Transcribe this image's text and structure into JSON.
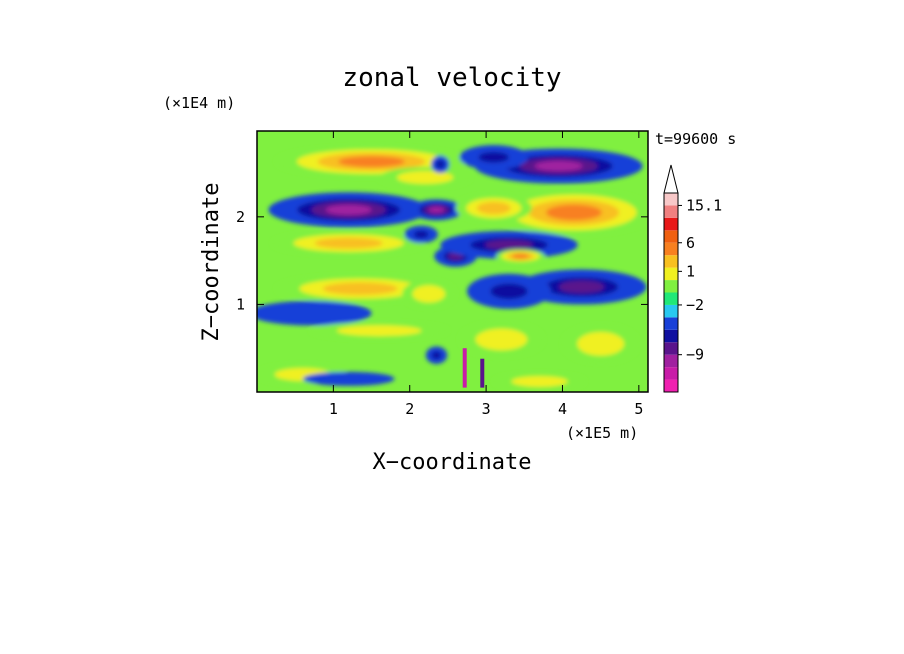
{
  "chart_data": {
    "type": "heatmap",
    "title": "zonal velocity",
    "xlabel": "X−coordinate",
    "ylabel": "Z−coordinate",
    "x_unit": "(×1E5 m)",
    "y_unit": "(×1E4 m)",
    "time_label": "t=99600 s",
    "xlim": [
      0,
      5.12
    ],
    "ylim": [
      0,
      2.98
    ],
    "x_ticks": [
      1,
      2,
      3,
      4,
      5
    ],
    "y_ticks": [
      1,
      2
    ],
    "colorbar": {
      "levels": [
        "#f020b0",
        "#c81ca8",
        "#a020a0",
        "#5a148c",
        "#1010a0",
        "#1840d8",
        "#28c8f0",
        "#20e878",
        "#80f040",
        "#f0f020",
        "#f8c020",
        "#f88020",
        "#f06010",
        "#e81818",
        "#f08080",
        "#f8c8c8"
      ],
      "labels": [
        {
          "text": "15.1",
          "level": 15
        },
        {
          "text": "6",
          "level": 12
        },
        {
          "text": "1",
          "level": 9.7
        },
        {
          "text": "−2",
          "level": 7
        },
        {
          "text": "−9",
          "level": 3
        }
      ]
    },
    "features": [
      {
        "cx": 1.5,
        "cz": 2.63,
        "rx": 1.25,
        "rz": 0.18,
        "v": 5
      },
      {
        "cx": 2.2,
        "cz": 2.45,
        "rx": 0.6,
        "rz": 0.12,
        "v": 3
      },
      {
        "cx": 1.2,
        "cz": 2.08,
        "rx": 1.05,
        "rz": 0.2,
        "v": -11
      },
      {
        "cx": 2.35,
        "cz": 2.08,
        "rx": 0.35,
        "rz": 0.12,
        "v": -9
      },
      {
        "cx": 3.95,
        "cz": 2.58,
        "rx": 1.1,
        "rz": 0.2,
        "v": -10
      },
      {
        "cx": 3.1,
        "cz": 2.68,
        "rx": 0.45,
        "rz": 0.14,
        "v": -6
      },
      {
        "cx": 2.4,
        "cz": 2.6,
        "rx": 0.12,
        "rz": 0.1,
        "v": -5
      },
      {
        "cx": 4.15,
        "cz": 2.05,
        "rx": 1.05,
        "rz": 0.26,
        "v": 6
      },
      {
        "cx": 3.1,
        "cz": 2.1,
        "rx": 0.5,
        "rz": 0.16,
        "v": 4
      },
      {
        "cx": 1.2,
        "cz": 1.7,
        "rx": 1.0,
        "rz": 0.14,
        "v": 4
      },
      {
        "cx": 2.15,
        "cz": 1.8,
        "rx": 0.22,
        "rz": 0.1,
        "v": -4
      },
      {
        "cx": 2.6,
        "cz": 1.55,
        "rx": 0.28,
        "rz": 0.12,
        "v": -7
      },
      {
        "cx": 3.3,
        "cz": 1.68,
        "rx": 0.9,
        "rz": 0.16,
        "v": -7
      },
      {
        "cx": 3.45,
        "cz": 1.55,
        "rx": 0.32,
        "rz": 0.08,
        "v": 5
      },
      {
        "cx": 4.25,
        "cz": 1.2,
        "rx": 0.85,
        "rz": 0.2,
        "v": -8
      },
      {
        "cx": 3.3,
        "cz": 1.15,
        "rx": 0.55,
        "rz": 0.2,
        "v": -5
      },
      {
        "cx": 1.35,
        "cz": 1.18,
        "rx": 1.1,
        "rz": 0.16,
        "v": 4
      },
      {
        "cx": 2.25,
        "cz": 1.12,
        "rx": 0.35,
        "rz": 0.16,
        "v": 3
      },
      {
        "cx": 0.7,
        "cz": 0.9,
        "rx": 0.8,
        "rz": 0.14,
        "v": -1.5
      },
      {
        "cx": 1.6,
        "cz": 0.7,
        "rx": 0.9,
        "rz": 0.1,
        "v": 3
      },
      {
        "cx": 2.35,
        "cz": 0.42,
        "rx": 0.14,
        "rz": 0.1,
        "v": -6
      },
      {
        "cx": 3.2,
        "cz": 0.6,
        "rx": 0.55,
        "rz": 0.2,
        "v": 3
      },
      {
        "cx": 4.5,
        "cz": 0.55,
        "rx": 0.5,
        "rz": 0.22,
        "v": 2.5
      },
      {
        "cx": 0.6,
        "cz": 0.2,
        "rx": 0.6,
        "rz": 0.12,
        "v": 3
      },
      {
        "cx": 1.2,
        "cz": 0.15,
        "rx": 0.6,
        "rz": 0.08,
        "v": -1.5
      },
      {
        "cx": 3.7,
        "cz": 0.12,
        "rx": 0.6,
        "rz": 0.1,
        "v": 2
      }
    ],
    "streaks": [
      {
        "x": 2.72,
        "z0": 0.05,
        "z1": 0.5,
        "v": -12
      },
      {
        "x": 2.95,
        "z0": 0.05,
        "z1": 0.38,
        "v": -7
      }
    ]
  }
}
